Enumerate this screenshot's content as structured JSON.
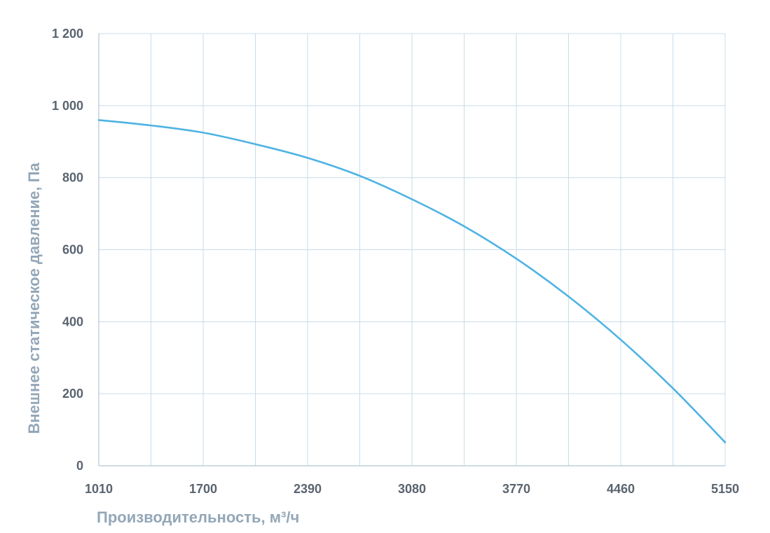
{
  "chart_data": {
    "type": "line",
    "xlabel": "Производительность, м³/ч",
    "ylabel": "Внешнее  статическое  давление, Па",
    "x_ticks": [
      "1010",
      "1700",
      "2390",
      "3080",
      "3770",
      "4460",
      "5150"
    ],
    "y_ticks": [
      "0",
      "200",
      "400",
      "600",
      "800",
      "1 000",
      "1 200"
    ],
    "xlim": [
      1010,
      5150
    ],
    "ylim": [
      0,
      1200
    ],
    "grid": true,
    "series": [
      {
        "color": "#4eb3e3",
        "x": [
          1010,
          1355,
          1700,
          2045,
          2390,
          2735,
          3080,
          3425,
          3770,
          4115,
          4460,
          4805,
          5150
        ],
        "y": [
          960,
          945,
          925,
          893,
          855,
          805,
          740,
          665,
          575,
          470,
          350,
          215,
          65
        ]
      }
    ]
  }
}
